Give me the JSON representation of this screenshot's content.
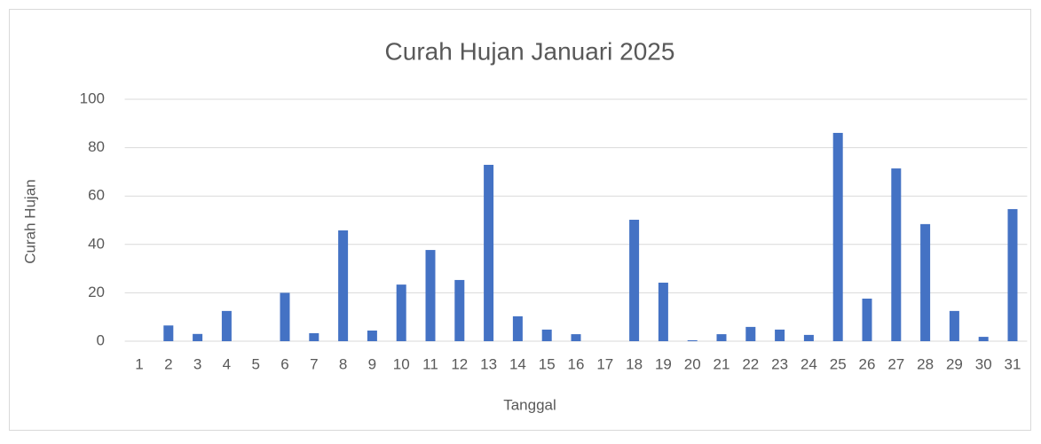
{
  "chart_data": {
    "type": "bar",
    "title": "Curah Hujan Januari 2025",
    "x_label": "Tanggal",
    "y_label": "Curah Hujan",
    "categories": [
      "1",
      "2",
      "3",
      "4",
      "5",
      "6",
      "7",
      "8",
      "9",
      "10",
      "11",
      "12",
      "13",
      "14",
      "15",
      "16",
      "17",
      "18",
      "19",
      "20",
      "21",
      "22",
      "23",
      "24",
      "25",
      "26",
      "27",
      "28",
      "29",
      "30",
      "31"
    ],
    "values": [
      0,
      6.5,
      3,
      12.5,
      0,
      20,
      3.3,
      45.8,
      4.4,
      23.4,
      37.7,
      25.3,
      72.9,
      10.3,
      4.8,
      2.9,
      0,
      50.2,
      24.2,
      0.4,
      2.9,
      5.9,
      4.8,
      2.6,
      86.1,
      17.6,
      71.4,
      48.4,
      12.5,
      1.8,
      54.6
    ],
    "color": "#4472c4",
    "ylim": [
      0,
      100
    ],
    "yticks": [
      0,
      20,
      40,
      60,
      80,
      100
    ],
    "grid": true
  }
}
